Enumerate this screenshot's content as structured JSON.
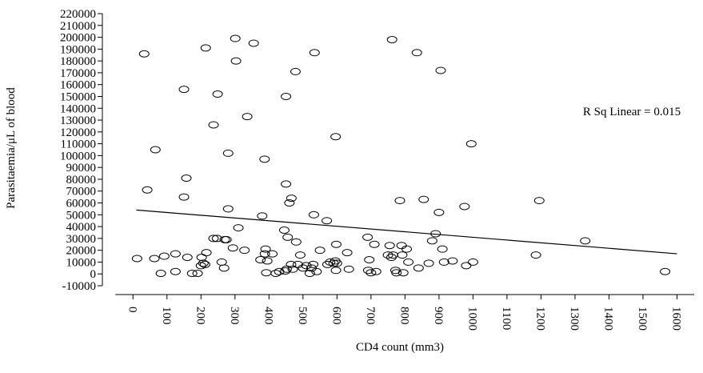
{
  "chart_data": {
    "type": "scatter",
    "xlabel": "CD4 count (mm3)",
    "ylabel": "Parasitaemia/μL of blood",
    "annotation": "R Sq Linear = 0.015",
    "x": [
      12,
      33,
      42,
      63,
      66,
      82,
      92,
      125,
      125,
      150,
      150,
      157,
      160,
      174,
      190,
      200,
      202,
      207,
      212,
      214,
      216,
      237,
      237,
      249,
      247,
      261,
      268,
      270,
      275,
      280,
      280,
      294,
      301,
      303,
      310,
      328,
      336,
      355,
      375,
      380,
      387,
      388,
      390,
      392,
      395,
      410,
      420,
      430,
      445,
      448,
      450,
      450,
      452,
      455,
      460,
      465,
      466,
      470,
      478,
      480,
      485,
      492,
      500,
      510,
      520,
      525,
      530,
      532,
      534,
      540,
      550,
      570,
      572,
      580,
      590,
      595,
      596,
      597,
      598,
      600,
      630,
      635,
      690,
      692,
      695,
      700,
      710,
      715,
      750,
      755,
      760,
      762,
      765,
      772,
      775,
      785,
      790,
      792,
      795,
      805,
      810,
      835,
      840,
      855,
      870,
      880,
      890,
      900,
      905,
      910,
      915,
      940,
      975,
      980,
      995,
      1000,
      1185,
      1195,
      1330,
      1565
    ],
    "y": [
      13000,
      186000,
      71000,
      13000,
      105000,
      500,
      15000,
      17000,
      2000,
      156000,
      65000,
      81000,
      14000,
      500,
      500,
      7000,
      14000,
      9000,
      8000,
      191000,
      18000,
      126000,
      30000,
      152000,
      30000,
      10000,
      5000,
      29000,
      29000,
      102000,
      55000,
      22000,
      199000,
      180000,
      39000,
      20000,
      133000,
      195000,
      12000,
      49000,
      97000,
      17000,
      21000,
      1000,
      11000,
      17000,
      500,
      2000,
      37000,
      2500,
      76000,
      150000,
      4000,
      31000,
      60000,
      8000,
      64000,
      4000,
      171000,
      27000,
      8000,
      16000,
      5000,
      7000,
      500,
      5000,
      8000,
      50000,
      187000,
      2000,
      20000,
      45000,
      8000,
      10000,
      9000,
      11000,
      116000,
      3000,
      25000,
      9000,
      18000,
      4000,
      31000,
      3000,
      12000,
      1000,
      25000,
      2000,
      16000,
      24000,
      14000,
      198000,
      16000,
      3000,
      1000,
      62000,
      24000,
      16000,
      1000,
      21000,
      10000,
      187000,
      5000,
      63000,
      9000,
      28000,
      34000,
      52000,
      172000,
      21000,
      10000,
      11000,
      57000,
      7000,
      110000,
      10000,
      16000,
      62000,
      28000,
      2000
    ],
    "fit_line": {
      "x": [
        10,
        1600
      ],
      "y": [
        54000,
        17000
      ]
    },
    "xlim": [
      -90,
      1660
    ],
    "ylim": [
      -10000,
      220000
    ],
    "xticks": [
      0,
      100,
      200,
      300,
      400,
      500,
      600,
      700,
      800,
      900,
      1000,
      1100,
      1200,
      1300,
      1400,
      1500,
      1600
    ],
    "yticks": [
      -10000,
      0,
      10000,
      20000,
      30000,
      40000,
      50000,
      60000,
      70000,
      80000,
      90000,
      100000,
      110000,
      120000,
      130000,
      140000,
      150000,
      160000,
      170000,
      180000,
      190000,
      200000,
      210000,
      220000
    ],
    "color": "#000000"
  }
}
